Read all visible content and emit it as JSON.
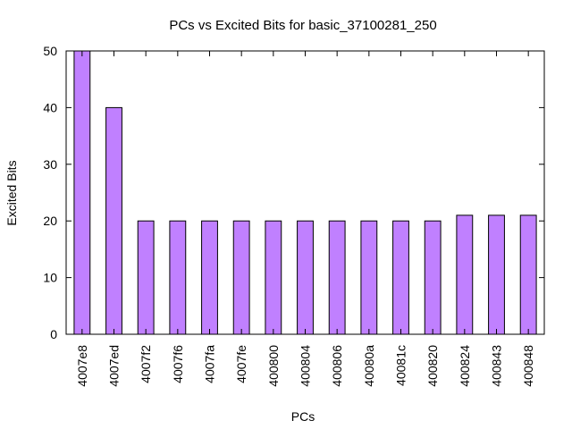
{
  "chart_data": {
    "type": "bar",
    "title": "PCs vs Excited Bits for basic_37100281_250",
    "xlabel": "PCs",
    "ylabel": "Excited Bits",
    "categories": [
      "4007e8",
      "4007ed",
      "4007f2",
      "4007f6",
      "4007fa",
      "4007fe",
      "400800",
      "400804",
      "400806",
      "40080a",
      "40081c",
      "400820",
      "400824",
      "400843",
      "400848"
    ],
    "values": [
      50,
      40,
      20,
      20,
      20,
      20,
      20,
      20,
      20,
      20,
      20,
      20,
      21,
      21,
      21
    ],
    "ylim": [
      0,
      50
    ],
    "yticks": [
      0,
      10,
      20,
      30,
      40,
      50
    ],
    "grid": false,
    "legend": "none",
    "bar_color": "#c080ff",
    "bar_edge_color": "#000000"
  }
}
